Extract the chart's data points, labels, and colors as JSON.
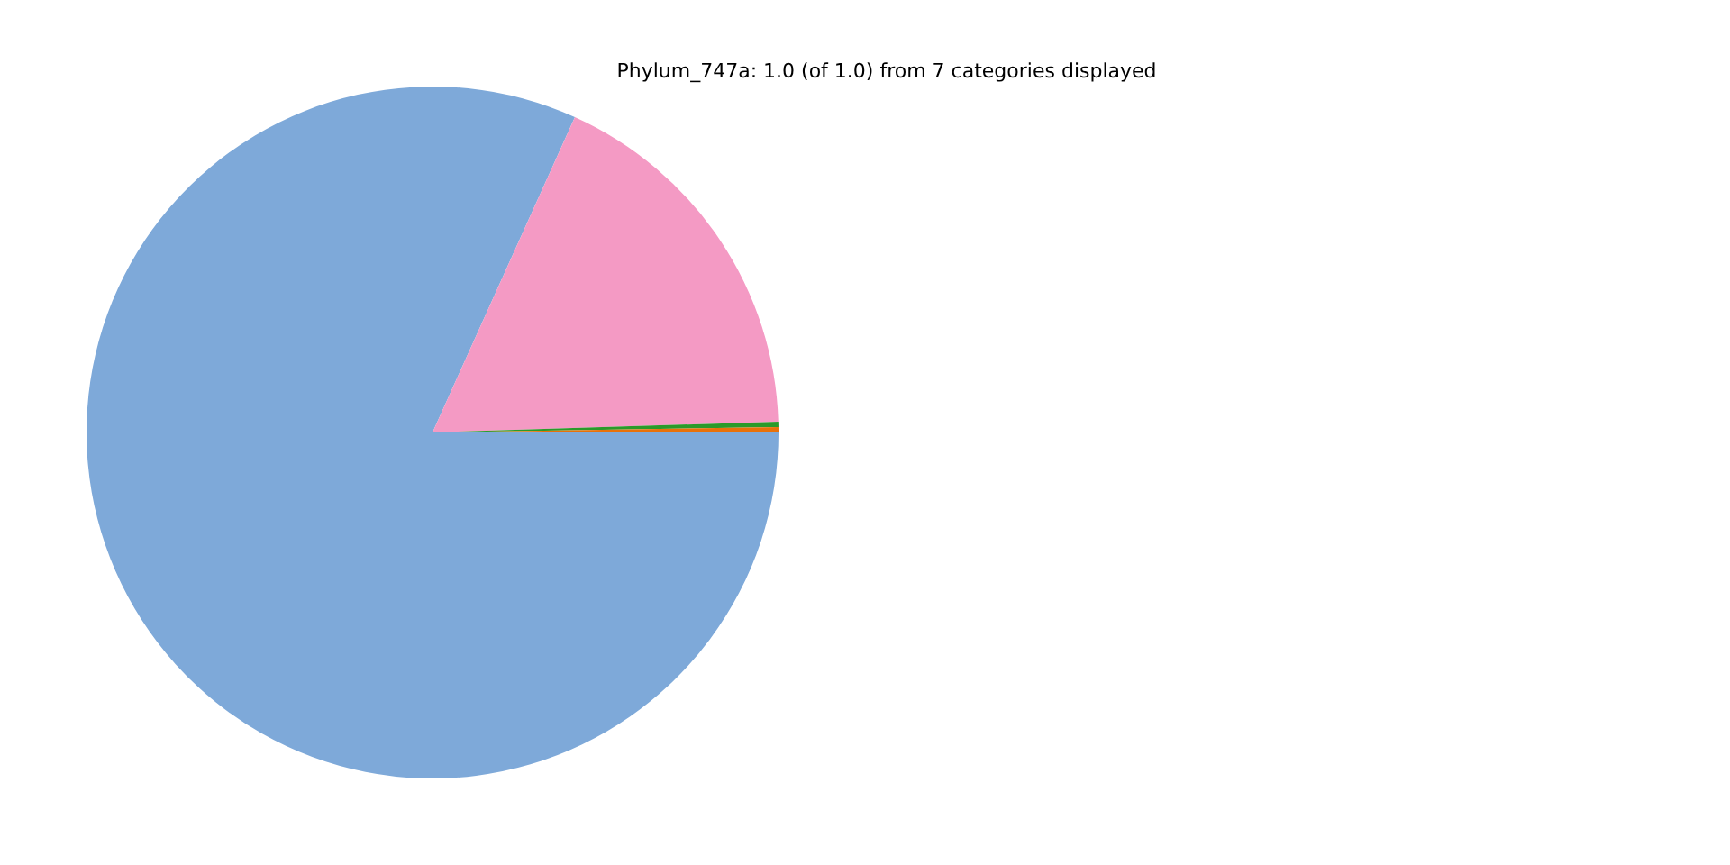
{
  "chart_data": {
    "type": "pie",
    "title": "Phylum_747a: 1.0 (of 1.0) from 7 categories displayed",
    "categories": [
      null,
      null,
      null,
      null
    ],
    "values": [
      81.75,
      17.75,
      0.25,
      0.25
    ],
    "colors": [
      "#7ea9d9",
      "#f49ac4",
      "#2a9a2a",
      "#e8710a"
    ]
  }
}
